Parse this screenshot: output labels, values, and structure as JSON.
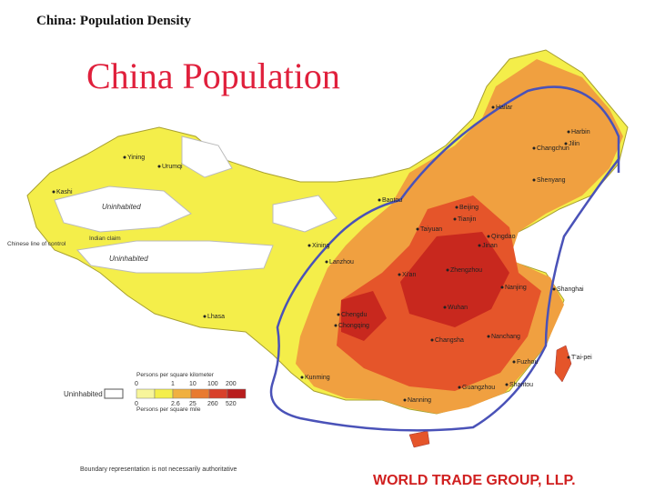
{
  "header": {
    "title": "China: Population Density",
    "overlay_title": "China Population"
  },
  "regions": {
    "uninhabited": [
      "Uninhabited",
      "Uninhabited"
    ],
    "line_of_control": "Chinese line of control",
    "claim": "Indian claim"
  },
  "cities": [
    "Hailar",
    "Harbin",
    "Jilin",
    "Changchun",
    "Shenyang",
    "Beijing",
    "Tianjin",
    "Baotou",
    "Taiyuan",
    "Qingdao",
    "Jinan",
    "Xining",
    "Lanzhou",
    "Xi'an",
    "Zhengzhou",
    "Nanjing",
    "Shanghai",
    "Chengdu",
    "Chongqing",
    "Wuhan",
    "Changsha",
    "Nanchang",
    "Fuzhou",
    "T'ai-pei",
    "Kunming",
    "Guangzhou",
    "Shantou",
    "Nanning",
    "Lhasa",
    "Yining",
    "Urumqi",
    "Kashi"
  ],
  "legend": {
    "uninhabited": "Uninhabited",
    "km_title": "Persons per square kilometer",
    "km_values": [
      0,
      1,
      10,
      100,
      200
    ],
    "mile_title": "Persons per square mile",
    "mile_values": [
      0,
      2.6,
      25,
      260,
      520
    ]
  },
  "note": "Boundary representation is not necessarily authoritative",
  "footer": "WORLD TRADE GROUP, LLP."
}
